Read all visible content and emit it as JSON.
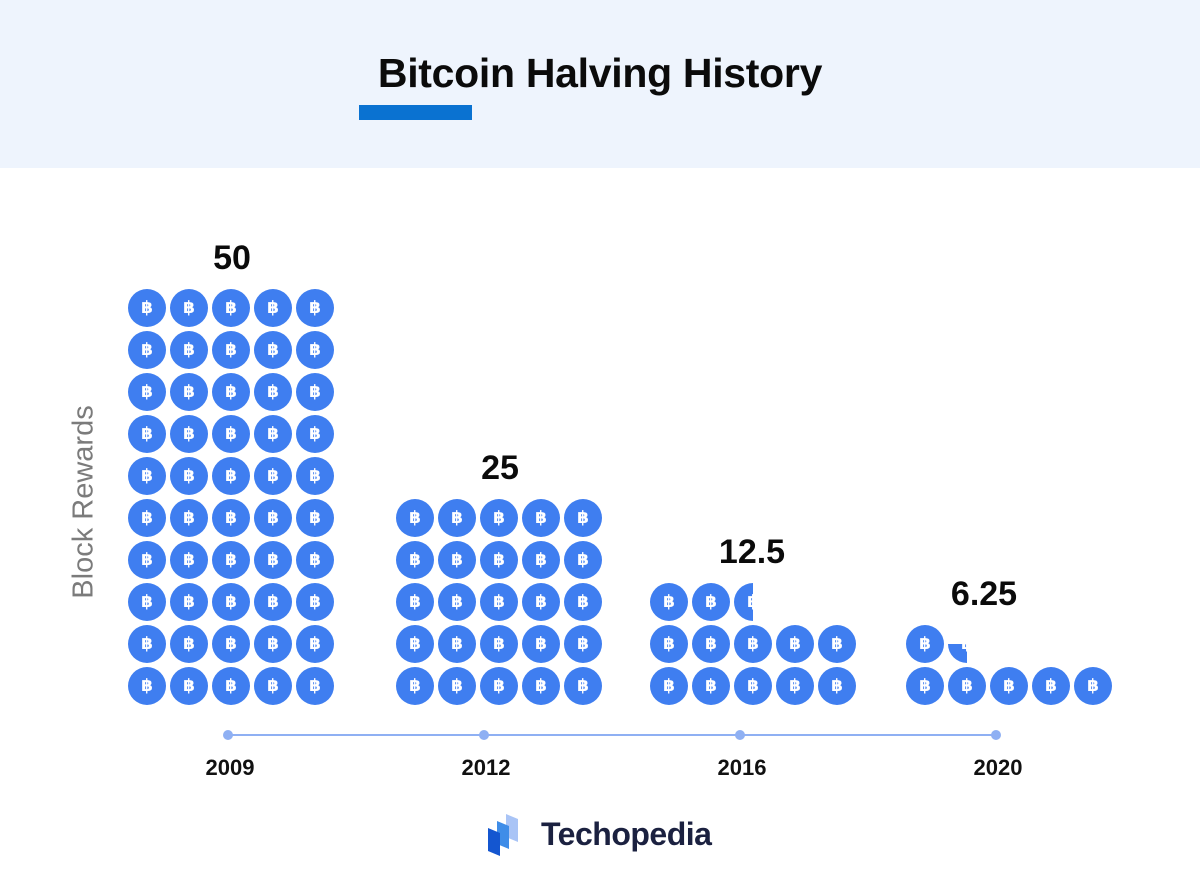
{
  "header": {
    "title": "Bitcoin Halving History",
    "accent_color": "#0a72d1",
    "background": "#eef4fd"
  },
  "chart_data": {
    "type": "bar",
    "title": "Bitcoin Halving History",
    "xlabel": "",
    "ylabel": "Block Rewards",
    "categories": [
      "2009",
      "2012",
      "2016",
      "2020"
    ],
    "values": [
      50,
      25,
      12.5,
      6.25
    ],
    "value_labels": [
      "50",
      "25",
      "12.5",
      "6.25"
    ],
    "unit_icon": "bitcoin-coin-icon",
    "coins_per_row": 5,
    "grid": false,
    "legend": null,
    "coin_color": "#3f7ef0",
    "axis_color": "#8fb0f3"
  },
  "brand": {
    "name": "Techopedia",
    "logo_icon": "techopedia-logo-icon"
  }
}
